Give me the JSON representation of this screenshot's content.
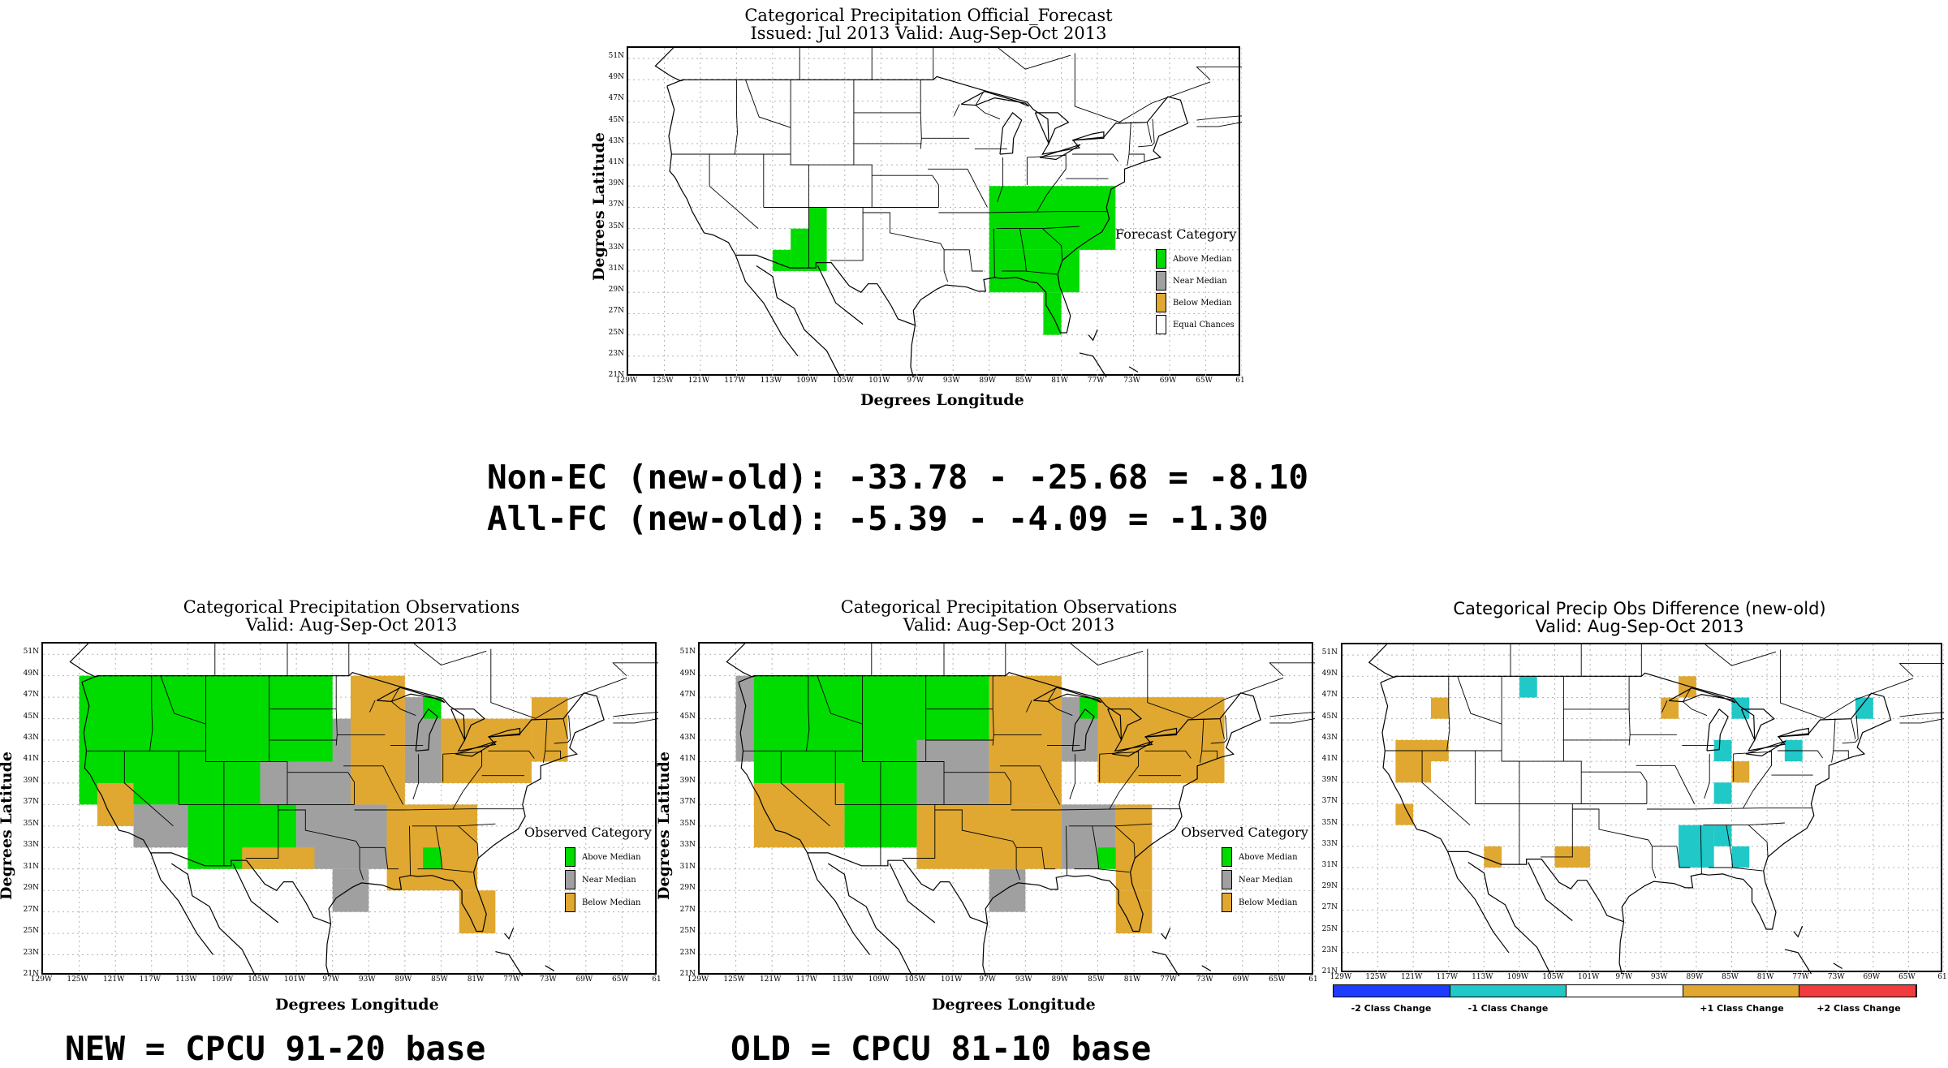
{
  "colors": {
    "above": "#00dc00",
    "near": "#a0a0a0",
    "below": "#e0a830",
    "equal": "#ffffff",
    "minus2": "#1e3cff",
    "minus1": "#20c8c8",
    "plus1": "#e0a830",
    "plus2": "#f03c3c"
  },
  "common": {
    "lat_ticks": [
      "51N",
      "49N",
      "47N",
      "45N",
      "43N",
      "41N",
      "39N",
      "37N",
      "35N",
      "33N",
      "31N",
      "29N",
      "27N",
      "25N",
      "23N",
      "21N"
    ],
    "lon_ticks": [
      "129W",
      "125W",
      "121W",
      "117W",
      "113W",
      "109W",
      "105W",
      "101W",
      "97W",
      "93W",
      "89W",
      "85W",
      "81W",
      "77W",
      "73W",
      "69W",
      "65W",
      "61"
    ],
    "ylabel": "Degrees Latitude",
    "xlabel": "Degrees Longitude"
  },
  "forecast": {
    "title1": "Categorical Precipitation Official_Forecast",
    "title2": "Issued: Jul 2013 Valid: Aug-Sep-Oct 2013",
    "legend_title": "Forecast Category",
    "legend": [
      {
        "label": "Above Median",
        "color": "#00dc00"
      },
      {
        "label": "Near Median",
        "color": "#a0a0a0"
      },
      {
        "label": "Below Median",
        "color": "#e0a830"
      },
      {
        "label": "Equal Chances",
        "color": "#ffffff"
      }
    ],
    "cells": [
      {
        "cat": "above",
        "lon": [
          -109,
          -107
        ],
        "lat": [
          31,
          37
        ]
      },
      {
        "cat": "above",
        "lon": [
          -111,
          -109
        ],
        "lat": [
          31,
          35
        ]
      },
      {
        "cat": "above",
        "lon": [
          -113,
          -111
        ],
        "lat": [
          31,
          33
        ]
      },
      {
        "cat": "above",
        "lon": [
          -89,
          -75
        ],
        "lat": [
          33,
          39
        ]
      },
      {
        "cat": "above",
        "lon": [
          -89,
          -79
        ],
        "lat": [
          29,
          33
        ]
      },
      {
        "cat": "above",
        "lon": [
          -83,
          -81
        ],
        "lat": [
          25,
          29
        ]
      }
    ]
  },
  "stats": {
    "line1": "Non-EC (new-old): -33.78 - -25.68 = -8.10",
    "line2": "All-FC (new-old): -5.39 - -4.09 = -1.30"
  },
  "obs_new": {
    "title1": "Categorical Precipitation Observations",
    "title2": "Valid: Aug-Sep-Oct 2013",
    "legend_title": "Observed Category",
    "legend": [
      {
        "label": "Above Median",
        "color": "#00dc00"
      },
      {
        "label": "Near Median",
        "color": "#a0a0a0"
      },
      {
        "label": "Below Median",
        "color": "#e0a830"
      }
    ],
    "cells": [
      {
        "cat": "near",
        "lon": [
          -125,
          -119
        ],
        "lat": [
          39,
          49
        ]
      },
      {
        "cat": "above",
        "lon": [
          -125,
          -105
        ],
        "lat": [
          37,
          49
        ]
      },
      {
        "cat": "above",
        "lon": [
          -113,
          -101
        ],
        "lat": [
          31,
          37
        ]
      },
      {
        "cat": "near",
        "lon": [
          -119,
          -113
        ],
        "lat": [
          33,
          37
        ]
      },
      {
        "cat": "below",
        "lon": [
          -123,
          -119
        ],
        "lat": [
          35,
          39
        ]
      },
      {
        "cat": "near",
        "lon": [
          -105,
          -95
        ],
        "lat": [
          37,
          45
        ]
      },
      {
        "cat": "above",
        "lon": [
          -105,
          -97
        ],
        "lat": [
          41,
          49
        ]
      },
      {
        "cat": "near",
        "lon": [
          -101,
          -89
        ],
        "lat": [
          31,
          37
        ]
      },
      {
        "cat": "below",
        "lon": [
          -95,
          -89
        ],
        "lat": [
          37,
          49
        ]
      },
      {
        "cat": "near",
        "lon": [
          -89,
          -85
        ],
        "lat": [
          39,
          47
        ]
      },
      {
        "cat": "below",
        "lon": [
          -85,
          -75
        ],
        "lat": [
          39,
          45
        ]
      },
      {
        "cat": "below",
        "lon": [
          -75,
          -71
        ],
        "lat": [
          41,
          47
        ]
      },
      {
        "cat": "below",
        "lon": [
          -91,
          -81
        ],
        "lat": [
          29,
          37
        ]
      },
      {
        "cat": "near",
        "lon": [
          -97,
          -93
        ],
        "lat": [
          27,
          31
        ]
      },
      {
        "cat": "below",
        "lon": [
          -83,
          -79
        ],
        "lat": [
          25,
          29
        ]
      },
      {
        "cat": "above",
        "lon": [
          -87,
          -85
        ],
        "lat": [
          45,
          47
        ]
      },
      {
        "cat": "above",
        "lon": [
          -87,
          -85
        ],
        "lat": [
          31,
          33
        ]
      },
      {
        "cat": "below",
        "lon": [
          -107,
          -99
        ],
        "lat": [
          31,
          33
        ]
      }
    ]
  },
  "obs_old": {
    "title1": "Categorical Precipitation Observations",
    "title2": "Valid: Aug-Sep-Oct 2013",
    "legend_title": "Observed Category",
    "legend": [
      {
        "label": "Above Median",
        "color": "#00dc00"
      },
      {
        "label": "Near Median",
        "color": "#a0a0a0"
      },
      {
        "label": "Below Median",
        "color": "#e0a830"
      }
    ],
    "cells": [
      {
        "cat": "near",
        "lon": [
          -125,
          -119
        ],
        "lat": [
          41,
          49
        ]
      },
      {
        "cat": "above",
        "lon": [
          -123,
          -105
        ],
        "lat": [
          37,
          49
        ]
      },
      {
        "cat": "above",
        "lon": [
          -113,
          -103
        ],
        "lat": [
          33,
          37
        ]
      },
      {
        "cat": "below",
        "lon": [
          -123,
          -113
        ],
        "lat": [
          33,
          39
        ]
      },
      {
        "cat": "near",
        "lon": [
          -105,
          -97
        ],
        "lat": [
          37,
          43
        ]
      },
      {
        "cat": "above",
        "lon": [
          -105,
          -97
        ],
        "lat": [
          43,
          49
        ]
      },
      {
        "cat": "below",
        "lon": [
          -97,
          -89
        ],
        "lat": [
          37,
          49
        ]
      },
      {
        "cat": "near",
        "lon": [
          -89,
          -85
        ],
        "lat": [
          41,
          47
        ]
      },
      {
        "cat": "below",
        "lon": [
          -85,
          -71
        ],
        "lat": [
          39,
          47
        ]
      },
      {
        "cat": "below",
        "lon": [
          -105,
          -89
        ],
        "lat": [
          31,
          37
        ]
      },
      {
        "cat": "near",
        "lon": [
          -89,
          -83
        ],
        "lat": [
          31,
          37
        ]
      },
      {
        "cat": "below",
        "lon": [
          -83,
          -79
        ],
        "lat": [
          29,
          37
        ]
      },
      {
        "cat": "above",
        "lon": [
          -87,
          -85
        ],
        "lat": [
          45,
          47
        ]
      },
      {
        "cat": "above",
        "lon": [
          -85,
          -83
        ],
        "lat": [
          31,
          33
        ]
      },
      {
        "cat": "below",
        "lon": [
          -83,
          -79
        ],
        "lat": [
          25,
          29
        ]
      },
      {
        "cat": "near",
        "lon": [
          -97,
          -93
        ],
        "lat": [
          27,
          31
        ]
      }
    ]
  },
  "diff": {
    "title1": "Categorical Precip Obs Difference (new-old)",
    "title2": "Valid: Aug-Sep-Oct 2013",
    "colorbar": [
      {
        "label": "-2 Class Change",
        "color": "#1e3cff"
      },
      {
        "label": "-1 Class Change",
        "color": "#20c8c8"
      },
      {
        "label": "",
        "color": "#ffffff"
      },
      {
        "label": "+1 Class Change",
        "color": "#e0a830"
      },
      {
        "label": "+2 Class Change",
        "color": "#f03c3c"
      }
    ],
    "cells": [
      {
        "cat": "plus1",
        "lon": [
          -123,
          -119
        ],
        "lat": [
          39,
          43
        ]
      },
      {
        "cat": "plus1",
        "lon": [
          -119,
          -117
        ],
        "lat": [
          41,
          43
        ]
      },
      {
        "cat": "plus1",
        "lon": [
          -123,
          -121
        ],
        "lat": [
          35,
          37
        ]
      },
      {
        "cat": "plus1",
        "lon": [
          -119,
          -117
        ],
        "lat": [
          45,
          47
        ]
      },
      {
        "cat": "minus1",
        "lon": [
          -109,
          -107
        ],
        "lat": [
          47,
          49
        ]
      },
      {
        "cat": "plus1",
        "lon": [
          -113,
          -111
        ],
        "lat": [
          31,
          33
        ]
      },
      {
        "cat": "plus1",
        "lon": [
          -105,
          -101
        ],
        "lat": [
          31,
          33
        ]
      },
      {
        "cat": "plus1",
        "lon": [
          -93,
          -91
        ],
        "lat": [
          45,
          47
        ]
      },
      {
        "cat": "plus1",
        "lon": [
          -91,
          -89
        ],
        "lat": [
          47,
          49
        ]
      },
      {
        "cat": "minus1",
        "lon": [
          -85,
          -83
        ],
        "lat": [
          45,
          47
        ]
      },
      {
        "cat": "minus1",
        "lon": [
          -87,
          -85
        ],
        "lat": [
          41,
          43
        ]
      },
      {
        "cat": "plus1",
        "lon": [
          -85,
          -83
        ],
        "lat": [
          39,
          41
        ]
      },
      {
        "cat": "minus1",
        "lon": [
          -87,
          -85
        ],
        "lat": [
          37,
          39
        ]
      },
      {
        "cat": "minus1",
        "lon": [
          -79,
          -77
        ],
        "lat": [
          41,
          43
        ]
      },
      {
        "cat": "minus1",
        "lon": [
          -71,
          -69
        ],
        "lat": [
          45,
          47
        ]
      },
      {
        "cat": "minus1",
        "lon": [
          -91,
          -87
        ],
        "lat": [
          31,
          35
        ]
      },
      {
        "cat": "minus1",
        "lon": [
          -87,
          -85
        ],
        "lat": [
          33,
          35
        ]
      },
      {
        "cat": "minus1",
        "lon": [
          -85,
          -83
        ],
        "lat": [
          31,
          33
        ]
      }
    ]
  },
  "notes": {
    "new": "NEW = CPCU 91-20 base",
    "old": "OLD = CPCU 81-10 base"
  }
}
